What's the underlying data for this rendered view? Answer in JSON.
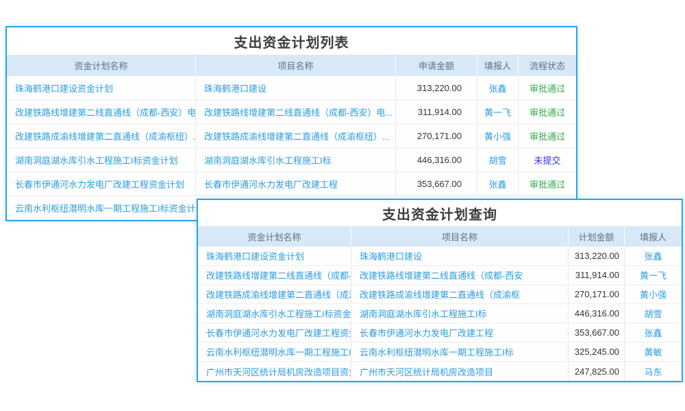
{
  "colors": {
    "panel_border": "#2aa4e3",
    "header_bg": "#d8e8f6",
    "link_text": "#2b9de0",
    "amount_text": "#333333",
    "status_approved_green": "#2fae47",
    "status_unsubmitted_blue": "#3734e8"
  },
  "panel_list": {
    "title": "支出资金计划列表",
    "columns": [
      "资金计划名称",
      "项目名称",
      "申请金额",
      "填报人",
      "流程状态"
    ],
    "rows": [
      {
        "plan_name": "珠海鹤港口建设资金计划",
        "project_name": "珠海鹤港口建设",
        "amount": "313,220.00",
        "reporter": "张鑫",
        "status": "审批通过",
        "status_type": "approved"
      },
      {
        "plan_name": "改建铁路线增建第二线直通线（成都-西安）电...",
        "project_name": "改建铁路线增建第二线直通线（成都-西安）电...",
        "amount": "311,914.00",
        "reporter": "黄一飞",
        "status": "审批通过",
        "status_type": "approved"
      },
      {
        "plan_name": "改建铁路成渝线增建第二直通线（成渝枢纽）...",
        "project_name": "改建铁路成渝线增建第二直通线（成渝枢纽）...",
        "amount": "270,171.00",
        "reporter": "黄小强",
        "status": "审批通过",
        "status_type": "approved"
      },
      {
        "plan_name": "湖南洞庭湖水库引水工程施工I标资金计划",
        "project_name": "湖南洞庭湖水库引水工程施工I标",
        "amount": "446,316.00",
        "reporter": "胡雪",
        "status": "未提交",
        "status_type": "unsubmitted"
      },
      {
        "plan_name": "长春市伊通河水力发电厂改建工程资金计划",
        "project_name": "长春市伊通河水力发电厂改建工程",
        "amount": "353,667.00",
        "reporter": "张鑫",
        "status": "审批通过",
        "status_type": "approved"
      },
      {
        "plan_name": "云南水利枢纽潜明水库一期工程施工I标资金计划",
        "project_name": "",
        "amount": "",
        "reporter": "",
        "status": "",
        "status_type": ""
      }
    ]
  },
  "panel_query": {
    "title": "支出资金计划查询",
    "columns": [
      "资金计划名称",
      "项目名称",
      "计划金额",
      "填报人"
    ],
    "rows": [
      {
        "plan_name": "珠海鹤港口建设资金计划",
        "project_name": "珠海鹤港口建设",
        "amount": "313,220.00",
        "reporter": "张鑫"
      },
      {
        "plan_name": "改建铁路线增建第二线直通线（成都-西安）电力线路迁",
        "project_name": "改建铁路线增建第二线直通线（成都-西安",
        "amount": "311,914.00",
        "reporter": "黄一飞"
      },
      {
        "plan_name": "改建铁路成渝线增建第二直通线（成渝枢纽）电力线路迁",
        "project_name": "改建铁路成渝线增建第二直通线（成渝枢",
        "amount": "270,171.00",
        "reporter": "黄小强"
      },
      {
        "plan_name": "湖南洞庭湖水库引水工程施工I标资金计划",
        "project_name": "湖南洞庭湖水库引水工程施工I标",
        "amount": "446,316.00",
        "reporter": "胡雪"
      },
      {
        "plan_name": "长春市伊通河水力发电厂改建工程资金计划",
        "project_name": "长春市伊通河水力发电厂改建工程",
        "amount": "353,667.00",
        "reporter": "张鑫"
      },
      {
        "plan_name": "云南水利枢纽潜明水库一期工程施工I标资金计划",
        "project_name": "云南水利枢纽潜明水库一期工程施工I标",
        "amount": "325,245.00",
        "reporter": "黄敏"
      },
      {
        "plan_name": "广州市天河区统计局机房改造项目资金计划",
        "project_name": "广州市天河区统计局机房改造项目",
        "amount": "247,825.00",
        "reporter": "马东"
      }
    ]
  }
}
